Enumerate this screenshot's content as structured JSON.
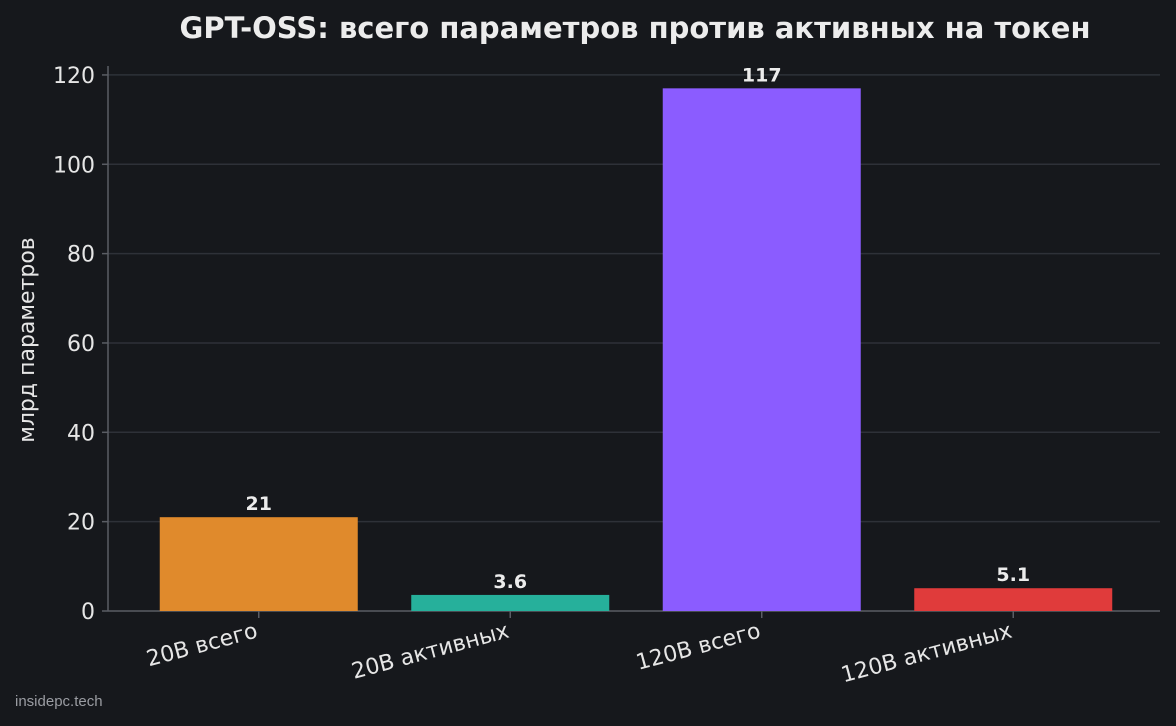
{
  "chart_data": {
    "type": "bar",
    "title": "GPT-OSS: всего параметров против активных на токен",
    "xlabel": "",
    "ylabel": "млрд параметров",
    "categories": [
      "20B всего",
      "20B активных",
      "120B всего",
      "120B активных"
    ],
    "values": [
      21,
      3.6,
      117,
      5.1
    ],
    "data_labels": [
      "21",
      "3.6",
      "117",
      "5.1"
    ],
    "colors": [
      "#e08a2c",
      "#26b09b",
      "#8b5cff",
      "#e03b3b"
    ],
    "ylim": [
      0,
      122
    ],
    "yticks": [
      0,
      20,
      40,
      60,
      80,
      100,
      120
    ],
    "grid": true,
    "grid_axis": "y",
    "legend": "none"
  },
  "theme": {
    "background": "#16181c",
    "grid_color": "#2e3138",
    "axis_color": "#5a5d64",
    "text_color": "#e6e6e6"
  },
  "watermark": "insidepc.tech"
}
